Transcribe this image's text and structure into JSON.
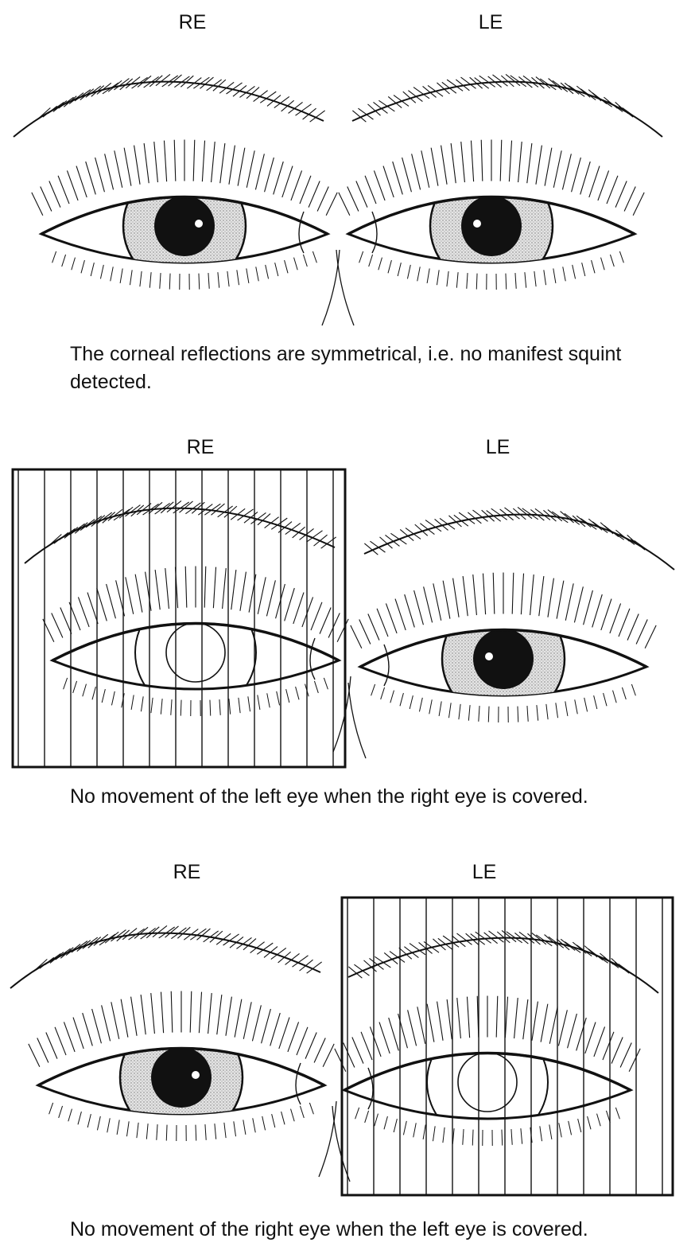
{
  "panels": [
    {
      "right_label": "RE",
      "left_label": "LE",
      "caption": "The corneal reflections are symmetrical, i.e. no manifest squint detected."
    },
    {
      "right_label": "RE",
      "left_label": "LE",
      "covered": "RE",
      "caption": "No movement of the left eye when the right eye is covered."
    },
    {
      "right_label": "RE",
      "left_label": "LE",
      "covered": "LE",
      "caption": "No movement of the right eye when the left eye is covered."
    }
  ]
}
